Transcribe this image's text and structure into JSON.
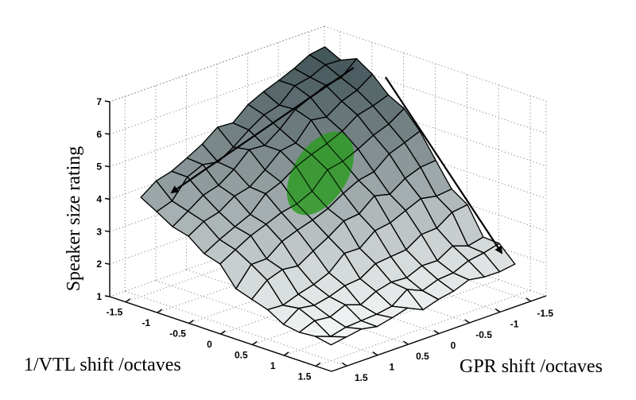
{
  "chart_data": {
    "type": "surface3d",
    "title": "",
    "xlabel": "1/VTL shift /octaves",
    "ylabel": "GPR shift /octaves",
    "zlabel": "Speaker size rating",
    "x_ticks": [
      "-1.5",
      "-1",
      "-0.5",
      "0",
      "0.5",
      "1",
      "1.5"
    ],
    "y_ticks": [
      "-1.5",
      "-1",
      "-0.5",
      "0",
      "0.5",
      "1",
      "1.5"
    ],
    "z_ticks": [
      "1",
      "2",
      "3",
      "4",
      "5",
      "6",
      "7"
    ],
    "xlim": [
      -1.75,
      1.75
    ],
    "ylim": [
      -1.75,
      1.75
    ],
    "zlim": [
      1,
      7
    ],
    "grid": true,
    "x": [
      -1.5,
      -1.0,
      -0.5,
      0.0,
      0.5,
      1.0,
      1.5
    ],
    "y": [
      -1.5,
      -1.0,
      -0.5,
      0.0,
      0.5,
      1.0,
      1.5
    ],
    "z_matrix_rows_x_cols_y": [
      [
        6.7,
        6.5,
        6.0,
        5.5,
        5.0,
        4.6,
        4.0
      ],
      [
        6.5,
        6.2,
        5.7,
        5.1,
        4.6,
        4.1,
        3.6
      ],
      [
        6.0,
        5.6,
        5.2,
        4.6,
        4.0,
        3.5,
        3.0
      ],
      [
        5.0,
        4.7,
        4.3,
        3.8,
        3.3,
        2.9,
        2.4
      ],
      [
        3.8,
        3.6,
        3.2,
        2.9,
        2.5,
        2.2,
        1.9
      ],
      [
        2.6,
        2.5,
        2.3,
        2.1,
        1.9,
        1.7,
        1.6
      ],
      [
        2.0,
        1.9,
        1.8,
        1.7,
        1.6,
        1.5,
        1.5
      ]
    ],
    "annotations": [
      {
        "type": "ellipse",
        "color": "#2e9a25",
        "description": "green highlighted region on surface"
      },
      {
        "type": "arrow",
        "direction": "decreasing 1/VTL... along GPR axis",
        "from": [
          445,
          85
        ],
        "to": [
          216,
          242
        ]
      },
      {
        "type": "arrow",
        "direction": "along 1/VTL axis",
        "from": [
          485,
          97
        ],
        "to": [
          631,
          318
        ]
      }
    ],
    "colormap": "gray (dark high, light low)"
  },
  "colors": {
    "background": "#ffffff",
    "highlight": "#2e9a25",
    "surface_high": "#3c4f53",
    "surface_low": "#f4f6f6"
  }
}
